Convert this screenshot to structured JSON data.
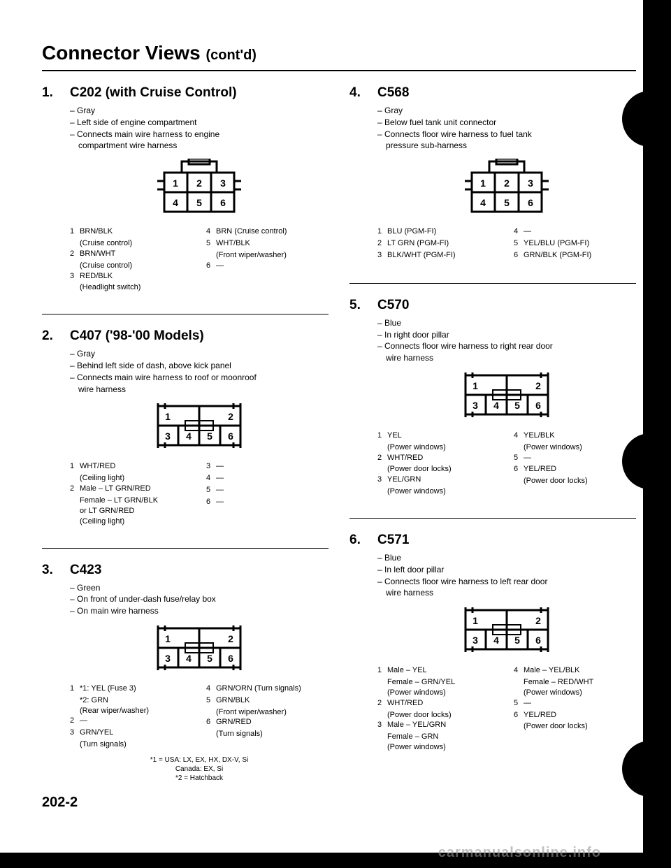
{
  "page_title": "Connector Views",
  "page_title_suffix": "(cont'd)",
  "page_number": "202-2",
  "watermark": "carmanualsonline.info",
  "sections": [
    {
      "num": "1.",
      "title": "C202 (with Cruise Control)",
      "meta": [
        "Gray",
        "Left side of engine compartment",
        "Connects main wire harness to engine"
      ],
      "meta_indent": "compartment wire harness",
      "diagram": "6pin-wide-tab",
      "pins_left": [
        {
          "n": "1",
          "label": "BRN/BLK",
          "sub": "(Cruise control)"
        },
        {
          "n": "2",
          "label": "BRN/WHT",
          "sub": "(Cruise control)"
        },
        {
          "n": "3",
          "label": "RED/BLK",
          "sub": "(Headlight switch)"
        }
      ],
      "pins_right": [
        {
          "n": "4",
          "label": "BRN (Cruise control)"
        },
        {
          "n": "5",
          "label": "WHT/BLK",
          "sub": "(Front wiper/washer)"
        },
        {
          "n": "6",
          "label": "—"
        }
      ]
    },
    {
      "num": "2.",
      "title": "C407 ('98-'00 Models)",
      "meta": [
        "Gray",
        "Behind left side of dash, above kick panel",
        "Connects main wire harness to roof or moonroof"
      ],
      "meta_indent": "wire harness",
      "diagram": "6pin-2top",
      "pins_left": [
        {
          "n": "1",
          "label": "WHT/RED",
          "sub": "(Ceiling light)"
        },
        {
          "n": "2",
          "label": "Male – LT GRN/RED",
          "sub": "Female – LT GRN/BLK",
          "sub2": "or LT GRN/RED",
          "sub3": "(Ceiling light)"
        }
      ],
      "pins_right": [
        {
          "n": "3",
          "label": "—"
        },
        {
          "n": "4",
          "label": "—"
        },
        {
          "n": "5",
          "label": "—"
        },
        {
          "n": "6",
          "label": "—"
        }
      ]
    },
    {
      "num": "3.",
      "title": "C423",
      "meta": [
        "Green",
        "On front of under-dash fuse/relay box",
        "On main wire harness"
      ],
      "diagram": "6pin-2top",
      "pins_left": [
        {
          "n": "1",
          "label": "*1: YEL (Fuse 3)",
          "sub": "*2: GRN",
          "sub2": "(Rear wiper/washer)"
        },
        {
          "n": "2",
          "label": "—"
        },
        {
          "n": "3",
          "label": "GRN/YEL",
          "sub": "(Turn signals)"
        }
      ],
      "pins_right": [
        {
          "n": "4",
          "label": "GRN/ORN (Turn signals)"
        },
        {
          "n": "5",
          "label": "GRN/BLK",
          "sub": "(Front wiper/washer)"
        },
        {
          "n": "6",
          "label": "GRN/RED",
          "sub": "(Turn signals)"
        }
      ],
      "footnotes": [
        "*1 = USA: LX, EX, HX, DX-V, Si",
        "Canada: EX, Si",
        "*2 = Hatchback"
      ]
    },
    {
      "num": "4.",
      "title": "C568",
      "meta": [
        "Gray",
        "Below fuel tank unit connector",
        "Connects floor wire harness to fuel tank"
      ],
      "meta_indent": "pressure sub-harness",
      "diagram": "6pin-wide-tab",
      "pins_left": [
        {
          "n": "1",
          "label": "BLU (PGM-FI)"
        },
        {
          "n": "2",
          "label": "LT GRN (PGM-FI)"
        },
        {
          "n": "3",
          "label": "BLK/WHT (PGM-FI)"
        }
      ],
      "pins_right": [
        {
          "n": "4",
          "label": "—"
        },
        {
          "n": "5",
          "label": "YEL/BLU (PGM-FI)"
        },
        {
          "n": "6",
          "label": "GRN/BLK (PGM-FI)"
        }
      ]
    },
    {
      "num": "5.",
      "title": "C570",
      "meta": [
        "Blue",
        "In right door pillar",
        "Connects floor wire harness to right rear door"
      ],
      "meta_indent": "wire harness",
      "diagram": "6pin-2top",
      "pins_left": [
        {
          "n": "1",
          "label": "YEL",
          "sub": "(Power windows)"
        },
        {
          "n": "2",
          "label": "WHT/RED",
          "sub": "(Power door locks)"
        },
        {
          "n": "3",
          "label": "YEL/GRN",
          "sub": "(Power windows)"
        }
      ],
      "pins_right": [
        {
          "n": "4",
          "label": "YEL/BLK",
          "sub": "(Power windows)"
        },
        {
          "n": "5",
          "label": "—"
        },
        {
          "n": "6",
          "label": "YEL/RED",
          "sub": "(Power door locks)"
        }
      ]
    },
    {
      "num": "6.",
      "title": "C571",
      "meta": [
        "Blue",
        "In left door pillar",
        "Connects floor wire harness to left rear door"
      ],
      "meta_indent": "wire harness",
      "diagram": "6pin-2top",
      "pins_left": [
        {
          "n": "1",
          "label": "Male – YEL",
          "sub": "Female – GRN/YEL",
          "sub2": "(Power windows)"
        },
        {
          "n": "2",
          "label": "WHT/RED",
          "sub": "(Power door locks)"
        },
        {
          "n": "3",
          "label": "Male – YEL/GRN",
          "sub": "Female – GRN",
          "sub2": "(Power windows)"
        }
      ],
      "pins_right": [
        {
          "n": "4",
          "label": "Male – YEL/BLK",
          "sub": "Female – RED/WHT",
          "sub2": "(Power windows)"
        },
        {
          "n": "5",
          "label": "—"
        },
        {
          "n": "6",
          "label": "YEL/RED",
          "sub": "(Power door locks)"
        }
      ]
    }
  ]
}
